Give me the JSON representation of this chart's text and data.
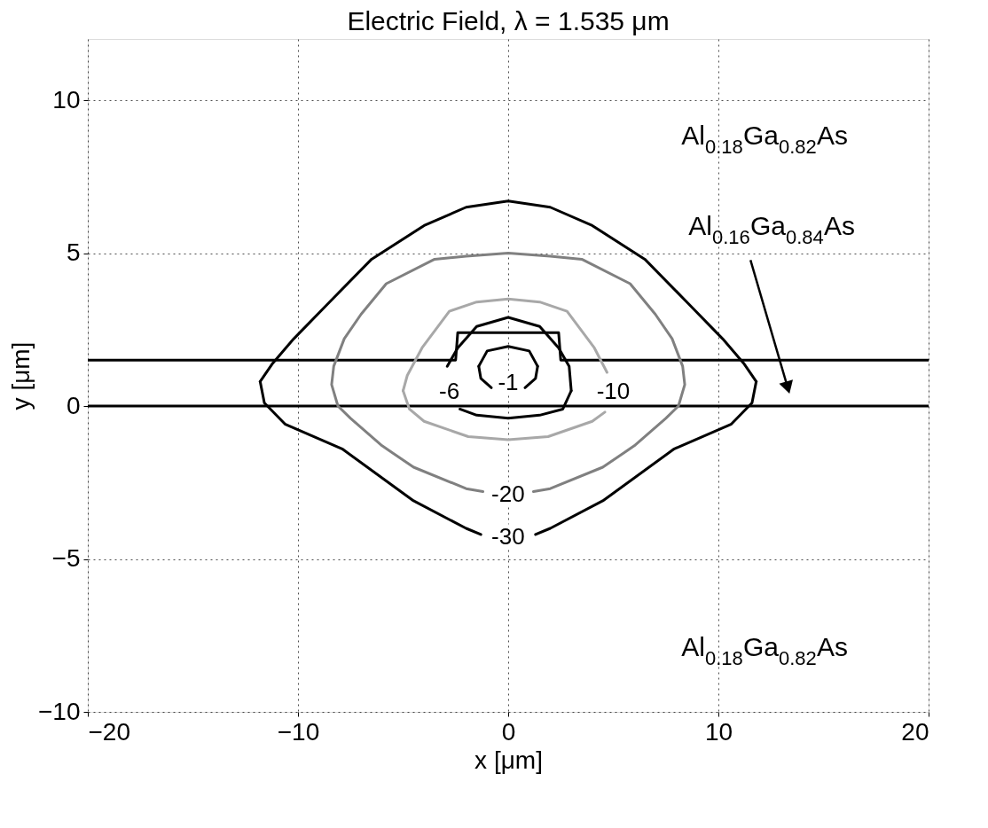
{
  "chart_data": {
    "type": "line",
    "title": "Electric Field, λ = 1.535 μm",
    "xlabel": "x [μm]",
    "ylabel": "y [μm]",
    "xlim": [
      -20,
      20
    ],
    "ylim": [
      -10,
      12
    ],
    "xticks": [
      -20,
      -10,
      0,
      10,
      20
    ],
    "yticks": [
      -10,
      -5,
      0,
      5,
      10
    ],
    "grid": true,
    "legend": false,
    "series": [
      {
        "color": "#000000",
        "x": [
          -20,
          20
        ],
        "values": [
          0,
          0
        ]
      },
      {
        "color": "#000000",
        "x": [
          -20,
          -2.5,
          -2.4,
          2.4,
          2.5,
          20
        ],
        "values": [
          1.5,
          1.5,
          2.4,
          2.4,
          1.5,
          1.5
        ]
      },
      {
        "color": "#000000",
        "x": [
          -11.8,
          -11.2,
          -10.2,
          -8.5,
          -6.5,
          -4,
          -2,
          0,
          2,
          4,
          6.5,
          8.5,
          10.2,
          11.2,
          11.8
        ],
        "values": [
          0.8,
          1.4,
          2.2,
          3.4,
          4.8,
          5.9,
          6.5,
          6.7,
          6.5,
          5.9,
          4.8,
          3.4,
          2.2,
          1.4,
          0.8
        ]
      },
      {
        "color": "#000000",
        "x": [
          -11.8,
          -11.6,
          -10.6,
          -7.9,
          -4.5,
          -2,
          -1.3
        ],
        "values": [
          0.8,
          0.1,
          -0.6,
          -1.4,
          -3.1,
          -4.0,
          -4.2
        ]
      },
      {
        "color": "#000000",
        "x": [
          1.3,
          2,
          4.5,
          7.9,
          10.6,
          11.6,
          11.8
        ],
        "values": [
          -4.2,
          -4.0,
          -3.1,
          -1.4,
          -0.6,
          0.1,
          0.8
        ]
      },
      {
        "color": "#808080",
        "x": [
          -1.2,
          -2,
          -4.5,
          -6,
          -7.5,
          -8.1,
          -8.4,
          -8.3,
          -7.8,
          -7,
          -5.8,
          -3.5,
          -2,
          0,
          2,
          3.5,
          5.8,
          7,
          7.8,
          8.3,
          8.4,
          8.1,
          7.5,
          6,
          4.5,
          2,
          1.2
        ],
        "values": [
          -2.8,
          -2.7,
          -2,
          -1.3,
          -0.4,
          0,
          0.7,
          1.3,
          2.2,
          3,
          4,
          4.8,
          4.9,
          5,
          4.9,
          4.8,
          4,
          3,
          2.2,
          1.3,
          0.7,
          0,
          -0.4,
          -1.3,
          -2,
          -2.7,
          -2.8
        ]
      },
      {
        "color": "#a8a8a8",
        "x": [
          -5,
          -4.8,
          -4.1,
          -2.8,
          -1.5,
          0,
          1.5,
          2.8,
          4.1,
          4.7
        ],
        "values": [
          0.5,
          1,
          1.9,
          3.1,
          3.4,
          3.5,
          3.4,
          3.1,
          1.9,
          1.1
        ]
      },
      {
        "color": "#a8a8a8",
        "x": [
          -5,
          -4.7,
          -4,
          -1.9,
          0,
          1.9,
          4,
          4.6
        ],
        "values": [
          0.5,
          -0.1,
          -0.5,
          -1,
          -1.1,
          -1,
          -0.5,
          -0.2
        ]
      },
      {
        "color": "#000000",
        "x": [
          -2.9,
          -2.4,
          -1.5,
          0,
          1.5,
          2.4,
          2.9,
          3
        ],
        "values": [
          1.3,
          1.9,
          2.6,
          2.9,
          2.6,
          1.9,
          1.3,
          0.5
        ]
      },
      {
        "color": "#000000",
        "x": [
          -2.3,
          -1.5,
          0,
          1.5,
          2.6,
          3
        ],
        "values": [
          -0.1,
          -0.3,
          -0.4,
          -0.3,
          -0.1,
          0.5
        ]
      },
      {
        "color": "#000000",
        "x": [
          -1.4,
          -1,
          0,
          1,
          1.4
        ],
        "values": [
          1.3,
          1.8,
          1.95,
          1.8,
          1.3
        ]
      },
      {
        "color": "#000000",
        "x": [
          -1.4,
          -1.3,
          -0.8
        ],
        "values": [
          1.3,
          0.9,
          0.6
        ]
      },
      {
        "color": "#000000",
        "x": [
          0.8,
          1.3,
          1.4
        ],
        "values": [
          0.6,
          0.9,
          1.3
        ]
      }
    ],
    "annotations": [
      "-30",
      "-20",
      "-10",
      "-6",
      "-1",
      "Al$_{0.18}$Ga$_{0.82}$As",
      "Al$_{0.16}$Ga$_{0.84}$As",
      "Al$_{0.18}$Ga$_{0.82}$As"
    ]
  }
}
